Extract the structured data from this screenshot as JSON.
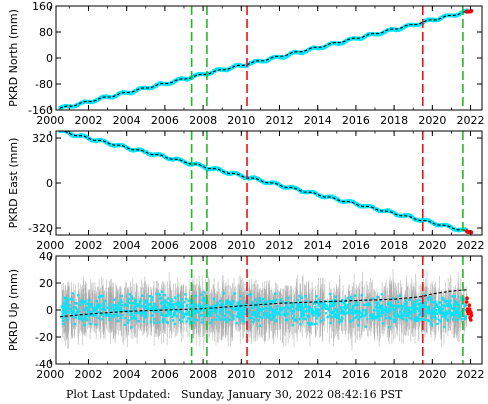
{
  "footer": {
    "label": "Plot Last Updated:",
    "date": "Sunday, January 30, 2022 08:42:16 PST"
  },
  "colors": {
    "data": "#00e5ff",
    "errorbar": "#a8a8a8",
    "model": "#000000",
    "recent": "#ff0000",
    "green_event": "#22bb22",
    "red_event": "#ee1111"
  },
  "chart_data": [
    {
      "type": "scatter",
      "ylabel": "PKRD North (mm)",
      "xlim": [
        2000.3,
        2022.6
      ],
      "ylim": [
        -160,
        160
      ],
      "yticks": [
        -160,
        -80,
        0,
        80,
        160
      ],
      "xticks": [
        2000,
        2002,
        2004,
        2006,
        2008,
        2010,
        2012,
        2014,
        2016,
        2018,
        2020,
        2022
      ],
      "grid": false,
      "series": [
        {
          "kind": "points",
          "x": [
            2000.5,
            2001,
            2002,
            2003,
            2004,
            2005,
            2006,
            2007,
            2008,
            2009,
            2010,
            2011,
            2012,
            2013,
            2014,
            2015,
            2016,
            2017,
            2018,
            2019,
            2020,
            2021,
            2021.8
          ],
          "y": [
            -155,
            -149,
            -135,
            -120,
            -107,
            -93,
            -79,
            -64,
            -50,
            -36,
            -23,
            -10,
            3,
            17,
            31,
            45,
            60,
            73,
            87,
            101,
            117,
            131,
            142
          ]
        },
        {
          "kind": "trend",
          "x": [
            2000.5,
            2021.8
          ],
          "y": [
            -155,
            142
          ]
        },
        {
          "kind": "recent",
          "x": [
            2021.8,
            2022.05
          ],
          "y": [
            142,
            145
          ]
        }
      ],
      "events_green": [
        2007.4,
        2008.2,
        2021.6
      ],
      "events_red": [
        2010.3,
        2019.5
      ]
    },
    {
      "type": "scatter",
      "ylabel": "PKRD East (mm)",
      "xlim": [
        2000.3,
        2022.6
      ],
      "ylim": [
        -370,
        370
      ],
      "yticks": [
        -320,
        0,
        320
      ],
      "xticks": [
        2000,
        2002,
        2004,
        2006,
        2008,
        2010,
        2012,
        2014,
        2016,
        2018,
        2020,
        2022
      ],
      "grid": false,
      "series": [
        {
          "kind": "points",
          "x": [
            2000.5,
            2002,
            2004,
            2006,
            2008,
            2010,
            2012,
            2014,
            2016,
            2018,
            2020,
            2021.8
          ],
          "y": [
            370,
            319,
            252,
            186,
            118,
            52,
            -14,
            -82,
            -148,
            -215,
            -282,
            -344
          ]
        },
        {
          "kind": "trend",
          "x": [
            2000.5,
            2021.8
          ],
          "y": [
            370,
            -344
          ]
        },
        {
          "kind": "recent",
          "x": [
            2021.8,
            2022.05
          ],
          "y": [
            -344,
            -352
          ]
        }
      ],
      "events_green": [
        2007.4,
        2008.2,
        2021.6
      ],
      "events_red": [
        2010.3,
        2019.5
      ]
    },
    {
      "type": "scatter",
      "ylabel": "PKRD Up (mm)",
      "xlim": [
        2000.3,
        2022.6
      ],
      "ylim": [
        -40,
        40
      ],
      "yticks": [
        -40,
        -20,
        0,
        20,
        40
      ],
      "xticks": [
        2000,
        2002,
        2004,
        2006,
        2008,
        2010,
        2012,
        2014,
        2016,
        2018,
        2020,
        2022
      ],
      "grid": false,
      "series": [
        {
          "kind": "points_scatter_band",
          "x_range": [
            2000.6,
            2021.8
          ],
          "center": 0,
          "spread": 10,
          "errorbar": 14
        },
        {
          "kind": "trend",
          "x": [
            2000.5,
            2002,
            2004,
            2006,
            2008,
            2010,
            2012,
            2014,
            2016,
            2018,
            2019.5,
            2020,
            2021,
            2021.8
          ],
          "y": [
            -5,
            -3,
            -1,
            0,
            1,
            3,
            5,
            6,
            7,
            8,
            10,
            12,
            14,
            15
          ]
        },
        {
          "kind": "recent",
          "x": [
            2021.8,
            2022.05
          ],
          "y": [
            5,
            -5
          ]
        }
      ],
      "events_green": [
        2007.4,
        2008.2,
        2021.6
      ],
      "events_red": [
        2010.3,
        2019.5
      ]
    }
  ]
}
